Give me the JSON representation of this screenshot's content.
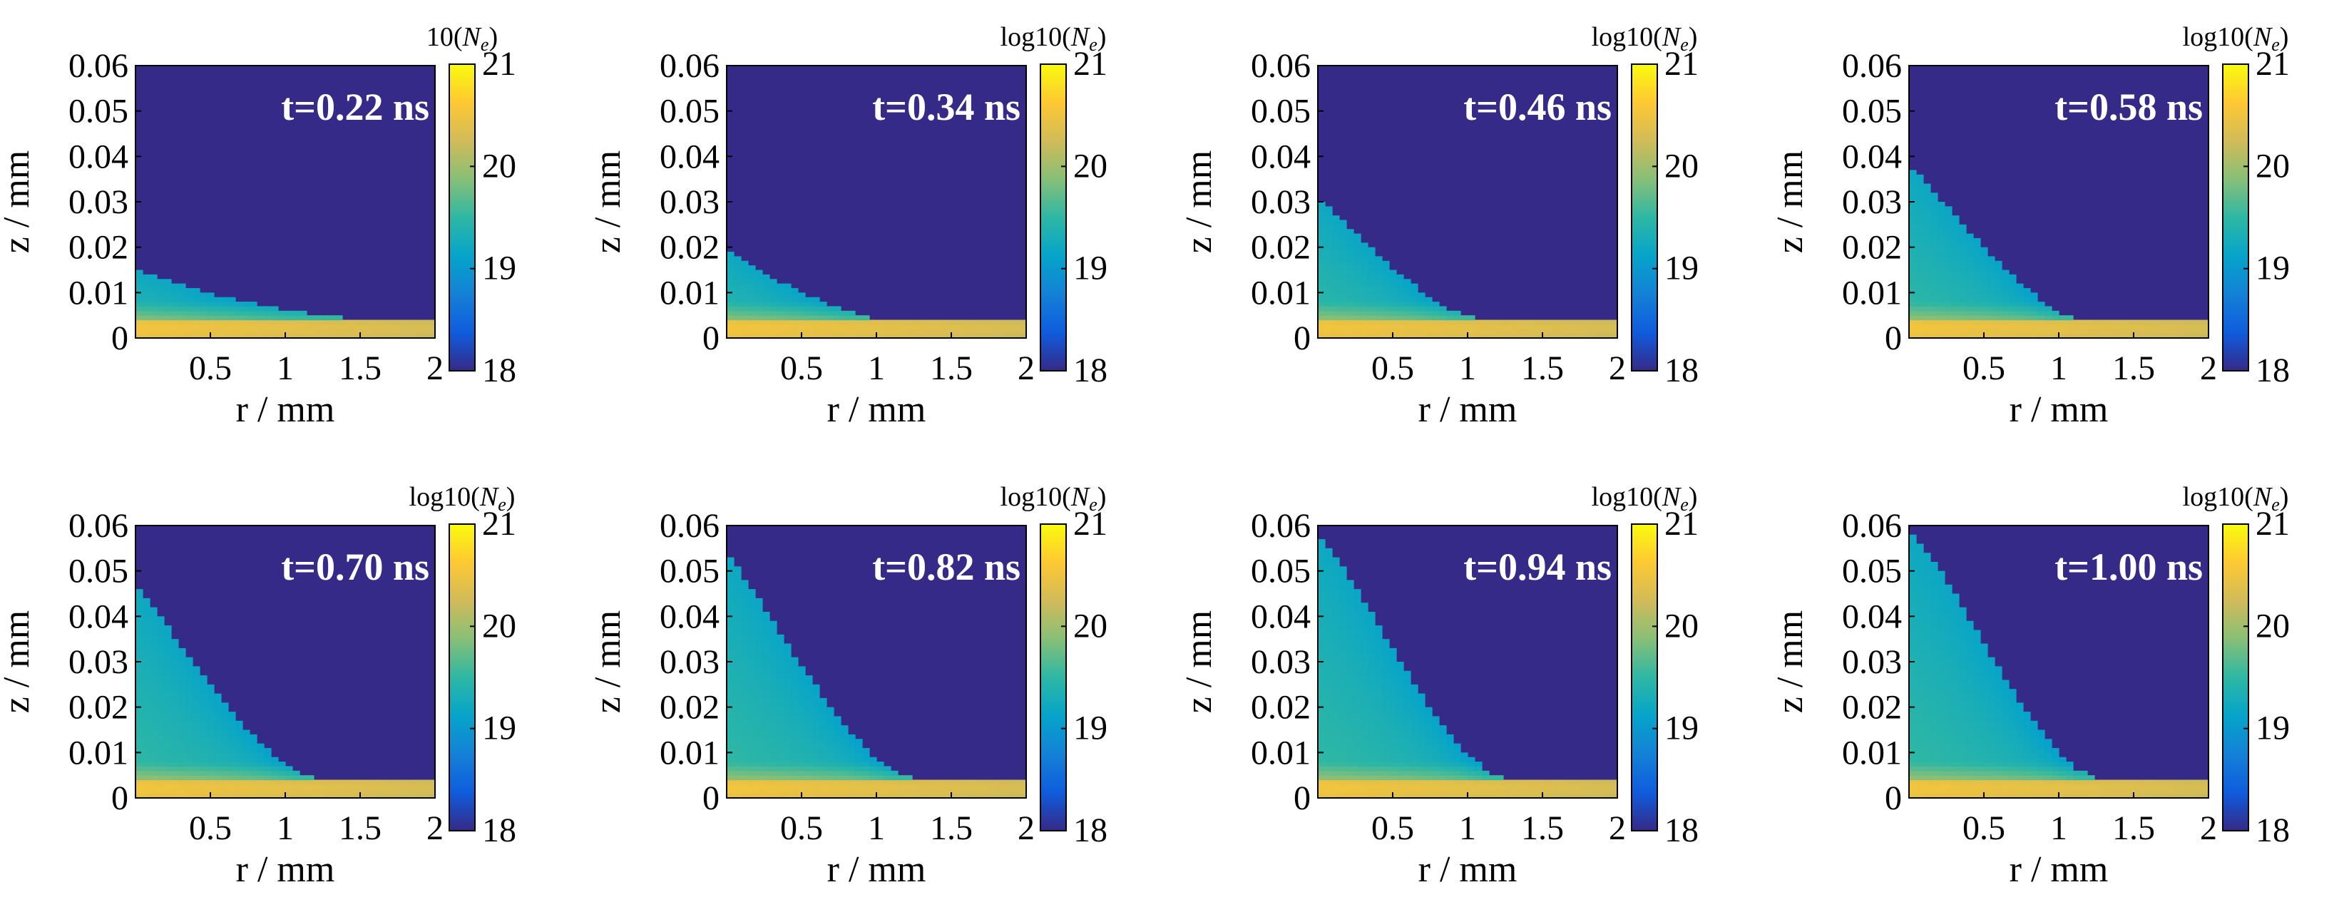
{
  "colors": {
    "cmap": [
      "#352a87",
      "#0f5cdd",
      "#1481d6",
      "#06a4ca",
      "#2eb7a4",
      "#87bf77",
      "#d1bb59",
      "#fec832",
      "#f9fb0e"
    ],
    "background": "#352a87",
    "label_text": "#ffffff"
  },
  "chart_data": [
    {
      "type": "heatmap",
      "time_label": "t=0.22 ns",
      "xlabel": "r / mm",
      "ylabel": "z / mm",
      "xlim": [
        0,
        2
      ],
      "ylim": [
        0,
        0.06
      ],
      "x_ticks": [
        "0.5",
        "1",
        "1.5",
        "2"
      ],
      "y_ticks": [
        "0",
        "0.01",
        "0.02",
        "0.03",
        "0.04",
        "0.05",
        "0.06"
      ],
      "colorbar": {
        "title": "10(",
        "symbol": "N",
        "subscript": "e",
        "close": ")",
        "min": 18,
        "max": 21,
        "ticks": [
          "18",
          "19",
          "20",
          "21"
        ]
      },
      "front_z": [
        0.015,
        0.0138,
        0.0125,
        0.011,
        0.0098,
        0.0088,
        0.0078,
        0.007,
        0.0063,
        0.0056,
        0.005,
        0.0045,
        0.0041,
        0.0038,
        0.0036,
        0.0035,
        0.0035
      ]
    },
    {
      "type": "heatmap",
      "time_label": "t=0.34 ns",
      "xlabel": "r / mm",
      "ylabel": "z / mm",
      "xlim": [
        0,
        2
      ],
      "ylim": [
        0,
        0.06
      ],
      "x_ticks": [
        "0.5",
        "1",
        "1.5",
        "2"
      ],
      "y_ticks": [
        "0",
        "0.01",
        "0.02",
        "0.03",
        "0.04",
        "0.05",
        "0.06"
      ],
      "colorbar": {
        "title": "log10(",
        "symbol": "N",
        "subscript": "e",
        "close": ")",
        "min": 18,
        "max": 21,
        "ticks": [
          "18",
          "19",
          "20",
          "21"
        ]
      },
      "front_z": [
        0.019,
        0.0165,
        0.0142,
        0.012,
        0.01,
        0.0082,
        0.0066,
        0.0052,
        0.0042,
        0.0036,
        0.0035,
        0.0035,
        0.0035,
        0.0035,
        0.0035,
        0.0035,
        0.0035
      ]
    },
    {
      "type": "heatmap",
      "time_label": "t=0.46 ns",
      "xlabel": "r / mm",
      "ylabel": "z / mm",
      "xlim": [
        0,
        2
      ],
      "ylim": [
        0,
        0.06
      ],
      "x_ticks": [
        "0.5",
        "1",
        "1.5",
        "2"
      ],
      "y_ticks": [
        "0",
        "0.01",
        "0.02",
        "0.03",
        "0.04",
        "0.05",
        "0.06"
      ],
      "colorbar": {
        "title": "log10(",
        "symbol": "N",
        "subscript": "e",
        "close": ")",
        "min": 18,
        "max": 21,
        "ticks": [
          "18",
          "19",
          "20",
          "21"
        ]
      },
      "front_z": [
        0.031,
        0.027,
        0.023,
        0.019,
        0.0155,
        0.012,
        0.009,
        0.0065,
        0.0048,
        0.004,
        0.0038,
        0.0038,
        0.0038,
        0.0038,
        0.0038,
        0.0038,
        0.0038
      ]
    },
    {
      "type": "heatmap",
      "time_label": "t=0.58 ns",
      "xlabel": "r / mm",
      "ylabel": "z / mm",
      "xlim": [
        0,
        2
      ],
      "ylim": [
        0,
        0.06
      ],
      "x_ticks": [
        "0.5",
        "1",
        "1.5",
        "2"
      ],
      "y_ticks": [
        "0",
        "0.01",
        "0.02",
        "0.03",
        "0.04",
        "0.05",
        "0.06"
      ],
      "colorbar": {
        "title": "log10(",
        "symbol": "N",
        "subscript": "e",
        "close": ")",
        "min": 18,
        "max": 21,
        "ticks": [
          "18",
          "19",
          "20",
          "21"
        ]
      },
      "front_z": [
        0.038,
        0.034,
        0.029,
        0.0245,
        0.02,
        0.0158,
        0.012,
        0.0085,
        0.0058,
        0.0042,
        0.0038,
        0.0038,
        0.0038,
        0.0038,
        0.0038,
        0.0038,
        0.0038
      ]
    },
    {
      "type": "heatmap",
      "time_label": "t=0.70 ns",
      "xlabel": "r / mm",
      "ylabel": "z / mm",
      "xlim": [
        0,
        2
      ],
      "ylim": [
        0,
        0.06
      ],
      "x_ticks": [
        "0.5",
        "1",
        "1.5",
        "2"
      ],
      "y_ticks": [
        "0",
        "0.01",
        "0.02",
        "0.03",
        "0.04",
        "0.05",
        "0.06"
      ],
      "colorbar": {
        "title": "log10(",
        "symbol": "N",
        "subscript": "e",
        "close": ")",
        "min": 18,
        "max": 21,
        "ticks": [
          "18",
          "19",
          "20",
          "21"
        ]
      },
      "front_z": [
        0.047,
        0.042,
        0.036,
        0.0305,
        0.025,
        0.0198,
        0.015,
        0.0108,
        0.0072,
        0.005,
        0.0042,
        0.0042,
        0.0042,
        0.0042,
        0.0042,
        0.0042,
        0.0042
      ]
    },
    {
      "type": "heatmap",
      "time_label": "t=0.82 ns",
      "xlabel": "r / mm",
      "ylabel": "z / mm",
      "xlim": [
        0,
        2
      ],
      "ylim": [
        0,
        0.06
      ],
      "x_ticks": [
        "0.5",
        "1",
        "1.5",
        "2"
      ],
      "y_ticks": [
        "0",
        "0.01",
        "0.02",
        "0.03",
        "0.04",
        "0.05",
        "0.06"
      ],
      "colorbar": {
        "title": "log10(",
        "symbol": "N",
        "subscript": "e",
        "close": ")",
        "min": 18,
        "max": 21,
        "ticks": [
          "18",
          "19",
          "20",
          "21"
        ]
      },
      "front_z": [
        0.054,
        0.048,
        0.042,
        0.0355,
        0.029,
        0.0232,
        0.0178,
        0.0128,
        0.0085,
        0.0055,
        0.0042,
        0.0042,
        0.0042,
        0.0042,
        0.0042,
        0.0042,
        0.0042
      ]
    },
    {
      "type": "heatmap",
      "time_label": "t=0.94 ns",
      "xlabel": "r / mm",
      "ylabel": "z / mm",
      "xlim": [
        0,
        2
      ],
      "ylim": [
        0,
        0.06
      ],
      "x_ticks": [
        "0.5",
        "1",
        "1.5",
        "2"
      ],
      "y_ticks": [
        "0",
        "0.01",
        "0.02",
        "0.03",
        "0.04",
        "0.05",
        "0.06"
      ],
      "colorbar": {
        "title": "log10(",
        "symbol": "N",
        "subscript": "e",
        "close": ")",
        "min": 18,
        "max": 21,
        "ticks": [
          "18",
          "19",
          "20",
          "21"
        ]
      },
      "front_z": [
        0.058,
        0.053,
        0.0465,
        0.0395,
        0.0325,
        0.026,
        0.0198,
        0.0142,
        0.0095,
        0.006,
        0.0042,
        0.0042,
        0.0042,
        0.0042,
        0.0042,
        0.0042,
        0.0042
      ]
    },
    {
      "type": "heatmap",
      "time_label": "t=1.00 ns",
      "xlabel": "r / mm",
      "ylabel": "z / mm",
      "xlim": [
        0,
        2
      ],
      "ylim": [
        0,
        0.06
      ],
      "x_ticks": [
        "0.5",
        "1",
        "1.5",
        "2"
      ],
      "y_ticks": [
        "0",
        "0.01",
        "0.02",
        "0.03",
        "0.04",
        "0.05",
        "0.06"
      ],
      "colorbar": {
        "title": "log10(",
        "symbol": "N",
        "subscript": "e",
        "close": ")",
        "min": 18,
        "max": 21,
        "ticks": [
          "18",
          "19",
          "20",
          "21"
        ]
      },
      "front_z": [
        0.059,
        0.054,
        0.048,
        0.041,
        0.034,
        0.0272,
        0.0208,
        0.015,
        0.01,
        0.0062,
        0.0042,
        0.0042,
        0.0042,
        0.0042,
        0.0042,
        0.0042,
        0.0042
      ]
    }
  ]
}
